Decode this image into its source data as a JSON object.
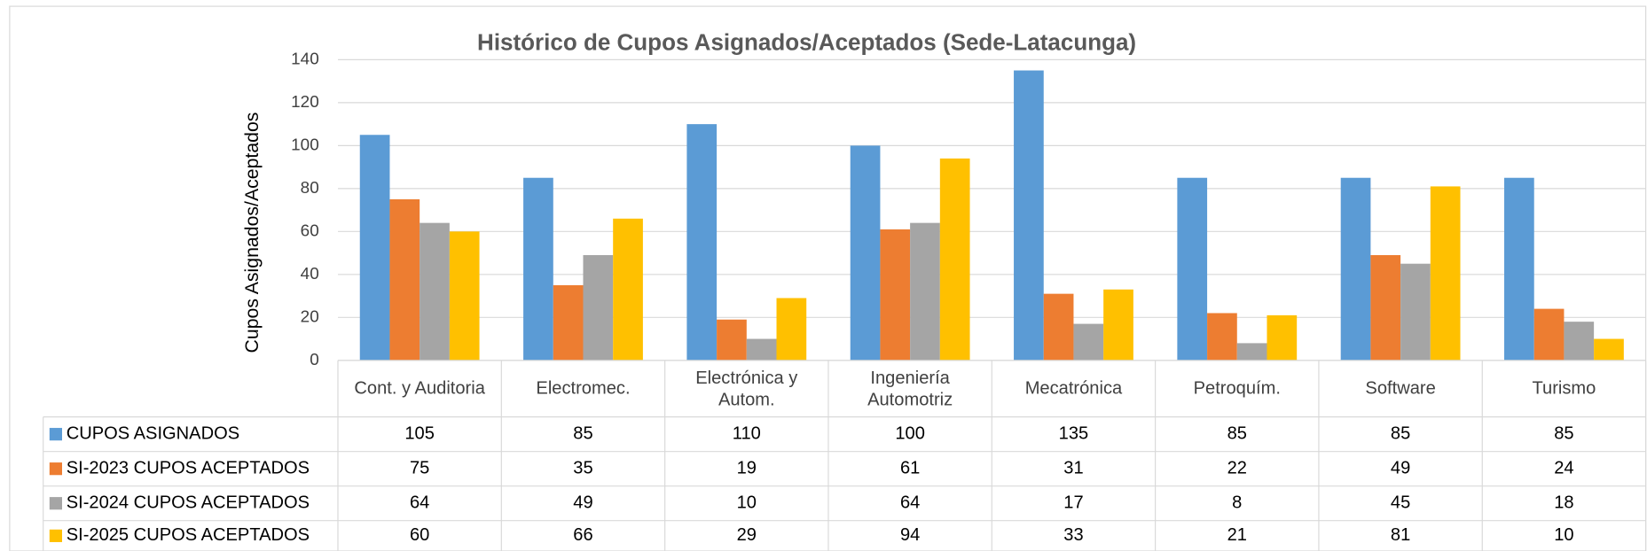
{
  "chart_data": {
    "type": "bar",
    "title": "Histórico de Cupos Asignados/Aceptados (Sede-Latacunga)",
    "y_label": "Cupos Asignados/Aceptados",
    "categories": [
      "Cont. y Auditoria",
      "Electromec.",
      "Electrónica y Autom.",
      "Ingeniería Automotriz",
      "Mecatrónica",
      "Petroquím.",
      "Software",
      "Turismo"
    ],
    "series": [
      {
        "name": "CUPOS ASIGNADOS",
        "color": "#5b9bd5",
        "values": [
          105,
          85,
          110,
          100,
          135,
          85,
          85,
          85
        ]
      },
      {
        "name": "SI-2023 CUPOS ACEPTADOS",
        "color": "#ed7d31",
        "values": [
          75,
          35,
          19,
          61,
          31,
          22,
          49,
          24
        ]
      },
      {
        "name": "SI-2024 CUPOS ACEPTADOS",
        "color": "#a5a5a5",
        "values": [
          64,
          49,
          10,
          64,
          17,
          8,
          45,
          18
        ]
      },
      {
        "name": "SI-2025 CUPOS ACEPTADOS",
        "color": "#ffc000",
        "values": [
          60,
          66,
          29,
          94,
          33,
          21,
          81,
          10
        ]
      }
    ],
    "ylim": [
      0,
      140
    ],
    "yticks": [
      0,
      20,
      40,
      60,
      80,
      100,
      120,
      140
    ],
    "grid": true
  }
}
